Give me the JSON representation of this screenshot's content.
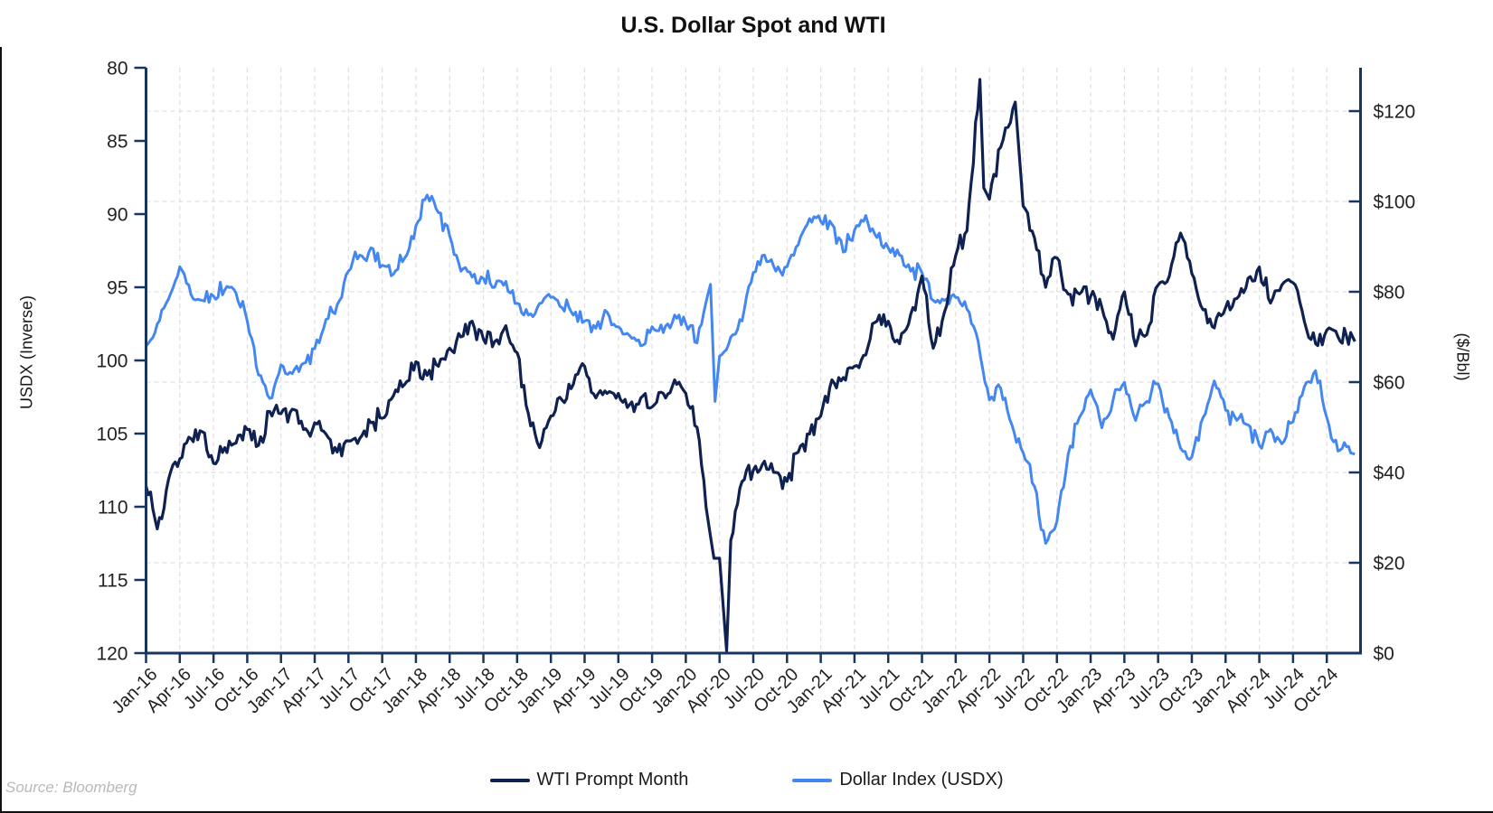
{
  "title": "U.S. Dollar Spot and WTI",
  "source": "Source: Bloomberg",
  "colors": {
    "wti_line": "#0e2150",
    "usdx_line": "#4487f0",
    "spine": "#17355e",
    "gridline": "#e0e0e0",
    "tick_label": "#222222"
  },
  "left_axis": {
    "title": "USDX (Inverse)",
    "ticks": [
      80,
      85,
      90,
      95,
      100,
      105,
      110,
      115,
      120
    ],
    "range": [
      80,
      120
    ],
    "inverted": true
  },
  "right_axis": {
    "title": "($/Bbl)",
    "tick_labels": [
      "$0",
      "$20",
      "$40",
      "$60",
      "$80",
      "$100",
      "$120"
    ],
    "tick_values": [
      0,
      20,
      40,
      60,
      80,
      100,
      120
    ],
    "range": [
      0,
      129.6
    ]
  },
  "x_axis": {
    "tick_labels": [
      "Jan-16",
      "Apr-16",
      "Jul-16",
      "Oct-16",
      "Jan-17",
      "Apr-17",
      "Jul-17",
      "Oct-17",
      "Jan-18",
      "Apr-18",
      "Jul-18",
      "Oct-18",
      "Jan-19",
      "Apr-19",
      "Jul-19",
      "Oct-19",
      "Jan-20",
      "Apr-20",
      "Jul-20",
      "Oct-20",
      "Jan-21",
      "Apr-21",
      "Jul-21",
      "Oct-21",
      "Jan-22",
      "Apr-22",
      "Jul-22",
      "Oct-22",
      "Jan-23",
      "Apr-23",
      "Jul-23",
      "Oct-23",
      "Jan-24",
      "Apr-24",
      "Jul-24",
      "Oct-24"
    ],
    "tick_month_index": [
      0,
      3,
      6,
      9,
      12,
      15,
      18,
      21,
      24,
      27,
      30,
      33,
      36,
      39,
      42,
      45,
      48,
      51,
      54,
      57,
      60,
      63,
      66,
      69,
      72,
      75,
      78,
      81,
      84,
      87,
      90,
      93,
      96,
      99,
      102,
      105
    ]
  },
  "legend": [
    {
      "label": "WTI Prompt Month",
      "color": "#0e2150"
    },
    {
      "label": "Dollar Index (USDX)",
      "color": "#4487f0"
    }
  ],
  "chart_data": {
    "type": "line",
    "title": "U.S. Dollar Spot and WTI",
    "x_unit": "months since Jan-2016 (fractional = intra-month event)",
    "grid": "dashed, vertical at quarterly ticks, horizontal at $20 intervals",
    "legend_position": "bottom-center",
    "series": [
      {
        "name": "WTI Prompt Month",
        "axis": "right",
        "unit": "$/Bbl",
        "points": [
          [
            0,
            37
          ],
          [
            1,
            27.5
          ],
          [
            2,
            38.5
          ],
          [
            3,
            43
          ],
          [
            4,
            47.5
          ],
          [
            5,
            49
          ],
          [
            6,
            42
          ],
          [
            7,
            45.5
          ],
          [
            8,
            46.5
          ],
          [
            9,
            49.5
          ],
          [
            10,
            46
          ],
          [
            11,
            53.5
          ],
          [
            12,
            53
          ],
          [
            13,
            54
          ],
          [
            14,
            49.5
          ],
          [
            15,
            51
          ],
          [
            16,
            48.5
          ],
          [
            17,
            44.5
          ],
          [
            18,
            47
          ],
          [
            19,
            47.5
          ],
          [
            20,
            51
          ],
          [
            21,
            52
          ],
          [
            22,
            57
          ],
          [
            23,
            59.5
          ],
          [
            24,
            64.5
          ],
          [
            25,
            61.5
          ],
          [
            26,
            63.5
          ],
          [
            27,
            67.5
          ],
          [
            28,
            70
          ],
          [
            29,
            73.5
          ],
          [
            30,
            69.5
          ],
          [
            31,
            69
          ],
          [
            32,
            72.5
          ],
          [
            33,
            66.5
          ],
          [
            34,
            53
          ],
          [
            35,
            45.5
          ],
          [
            36,
            52.5
          ],
          [
            37,
            56
          ],
          [
            38,
            59.5
          ],
          [
            39,
            63.5
          ],
          [
            40,
            56.5
          ],
          [
            41,
            57.5
          ],
          [
            42,
            57.5
          ],
          [
            43,
            55
          ],
          [
            44,
            56.5
          ],
          [
            45,
            54.5
          ],
          [
            46,
            57.5
          ],
          [
            47,
            60.5
          ],
          [
            48,
            57.5
          ],
          [
            49,
            50
          ],
          [
            50,
            29
          ],
          [
            50.5,
            21
          ],
          [
            51,
            21
          ],
          [
            51.63,
            0.5
          ],
          [
            51.82,
            13
          ],
          [
            52,
            25
          ],
          [
            53,
            38
          ],
          [
            54,
            40.5
          ],
          [
            55,
            42.5
          ],
          [
            56,
            40
          ],
          [
            57,
            38
          ],
          [
            58,
            44.5
          ],
          [
            59,
            48.5
          ],
          [
            60,
            52.5
          ],
          [
            61,
            60.5
          ],
          [
            62,
            61
          ],
          [
            63,
            63.5
          ],
          [
            64,
            66
          ],
          [
            65,
            73.5
          ],
          [
            66,
            73.5
          ],
          [
            67,
            68.5
          ],
          [
            68,
            75
          ],
          [
            69,
            83.5
          ],
          [
            70,
            67.5
          ],
          [
            71,
            75.5
          ],
          [
            72,
            88
          ],
          [
            73,
            93.5
          ],
          [
            74.15,
            127
          ],
          [
            74.5,
            103
          ],
          [
            75,
            100.5
          ],
          [
            76,
            112
          ],
          [
            77.3,
            122
          ],
          [
            78,
            99
          ],
          [
            79,
            92
          ],
          [
            80,
            81
          ],
          [
            81,
            87.5
          ],
          [
            82,
            79.5
          ],
          [
            83,
            79.5
          ],
          [
            84,
            79
          ],
          [
            85,
            76.5
          ],
          [
            86,
            69.5
          ],
          [
            87,
            80
          ],
          [
            88,
            68
          ],
          [
            89,
            70.5
          ],
          [
            90,
            81.5
          ],
          [
            91,
            83.5
          ],
          [
            92,
            93
          ],
          [
            93,
            84
          ],
          [
            94,
            76
          ],
          [
            95,
            72
          ],
          [
            96,
            76.5
          ],
          [
            97,
            78.5
          ],
          [
            98,
            83
          ],
          [
            99,
            85.5
          ],
          [
            100,
            77.5
          ],
          [
            101,
            81.5
          ],
          [
            102,
            82
          ],
          [
            103,
            73.5
          ],
          [
            104,
            68.5
          ],
          [
            105,
            71.5
          ],
          [
            106,
            70
          ],
          [
            107.5,
            69
          ]
        ]
      },
      {
        "name": "Dollar Index (USDX)",
        "axis": "left",
        "unit": "index",
        "points": [
          [
            0,
            99
          ],
          [
            1,
            97.5
          ],
          [
            2,
            95.8
          ],
          [
            3,
            93.6
          ],
          [
            4,
            95.5
          ],
          [
            5,
            95.9
          ],
          [
            6,
            95.6
          ],
          [
            7,
            95.2
          ],
          [
            8,
            95.4
          ],
          [
            9,
            97.3
          ],
          [
            10,
            101
          ],
          [
            11,
            102.6
          ],
          [
            12,
            100.3
          ],
          [
            13,
            100.9
          ],
          [
            14,
            100.2
          ],
          [
            15,
            99.2
          ],
          [
            16,
            97.2
          ],
          [
            17,
            96.2
          ],
          [
            18,
            93.9
          ],
          [
            19,
            92.8
          ],
          [
            20,
            92.3
          ],
          [
            21,
            93.5
          ],
          [
            22,
            94.1
          ],
          [
            23,
            93
          ],
          [
            24,
            90.8
          ],
          [
            25,
            88.7
          ],
          [
            26,
            89.9
          ],
          [
            27,
            91.5
          ],
          [
            28,
            93.9
          ],
          [
            29,
            94.3
          ],
          [
            30,
            94.4
          ],
          [
            31,
            95
          ],
          [
            32,
            94.6
          ],
          [
            33,
            96.1
          ],
          [
            34,
            96.9
          ],
          [
            35,
            96.1
          ],
          [
            36,
            95.7
          ],
          [
            37,
            96.4
          ],
          [
            38,
            96.9
          ],
          [
            39,
            97.3
          ],
          [
            40,
            97.8
          ],
          [
            41,
            96.7
          ],
          [
            42,
            97.7
          ],
          [
            43,
            98.3
          ],
          [
            44,
            99
          ],
          [
            45,
            97.7
          ],
          [
            46,
            98.1
          ],
          [
            47,
            96.9
          ],
          [
            48,
            97.5
          ],
          [
            49,
            98.8
          ],
          [
            50.2,
            94.8
          ],
          [
            50.6,
            102.8
          ],
          [
            51,
            99.7
          ],
          [
            52,
            98.4
          ],
          [
            53,
            97.3
          ],
          [
            54,
            94
          ],
          [
            55,
            92.8
          ],
          [
            56,
            93.9
          ],
          [
            57,
            93.6
          ],
          [
            58,
            92.1
          ],
          [
            59,
            90.3
          ],
          [
            60,
            90.5
          ],
          [
            61,
            90.7
          ],
          [
            62,
            92.6
          ],
          [
            63,
            91.1
          ],
          [
            64,
            90.1
          ],
          [
            65,
            91.6
          ],
          [
            66,
            92.3
          ],
          [
            67,
            92.8
          ],
          [
            68,
            93.9
          ],
          [
            69,
            94
          ],
          [
            70,
            95.9
          ],
          [
            71,
            95.9
          ],
          [
            72,
            95.7
          ],
          [
            73,
            96.5
          ],
          [
            74,
            98.7
          ],
          [
            75,
            102.7
          ],
          [
            76,
            101.9
          ],
          [
            77,
            104.4
          ],
          [
            78,
            106.3
          ],
          [
            79,
            108.6
          ],
          [
            80,
            112.5
          ],
          [
            81,
            111
          ],
          [
            82,
            106.4
          ],
          [
            83,
            103.9
          ],
          [
            84,
            102
          ],
          [
            85,
            104.6
          ],
          [
            86,
            102.7
          ],
          [
            87,
            101.5
          ],
          [
            88,
            104.1
          ],
          [
            89,
            102.8
          ],
          [
            90,
            101.6
          ],
          [
            91,
            103.9
          ],
          [
            92,
            106
          ],
          [
            93,
            106.6
          ],
          [
            94,
            103.9
          ],
          [
            95,
            101.4
          ],
          [
            96,
            103.4
          ],
          [
            97,
            104.1
          ],
          [
            98,
            104.4
          ],
          [
            99,
            105.8
          ],
          [
            100,
            104.7
          ],
          [
            101,
            105.7
          ],
          [
            102,
            104.2
          ],
          [
            103,
            101.8
          ],
          [
            104,
            100.7
          ],
          [
            105,
            103.9
          ],
          [
            106,
            106.2
          ],
          [
            107.5,
            106.4
          ]
        ]
      }
    ]
  }
}
